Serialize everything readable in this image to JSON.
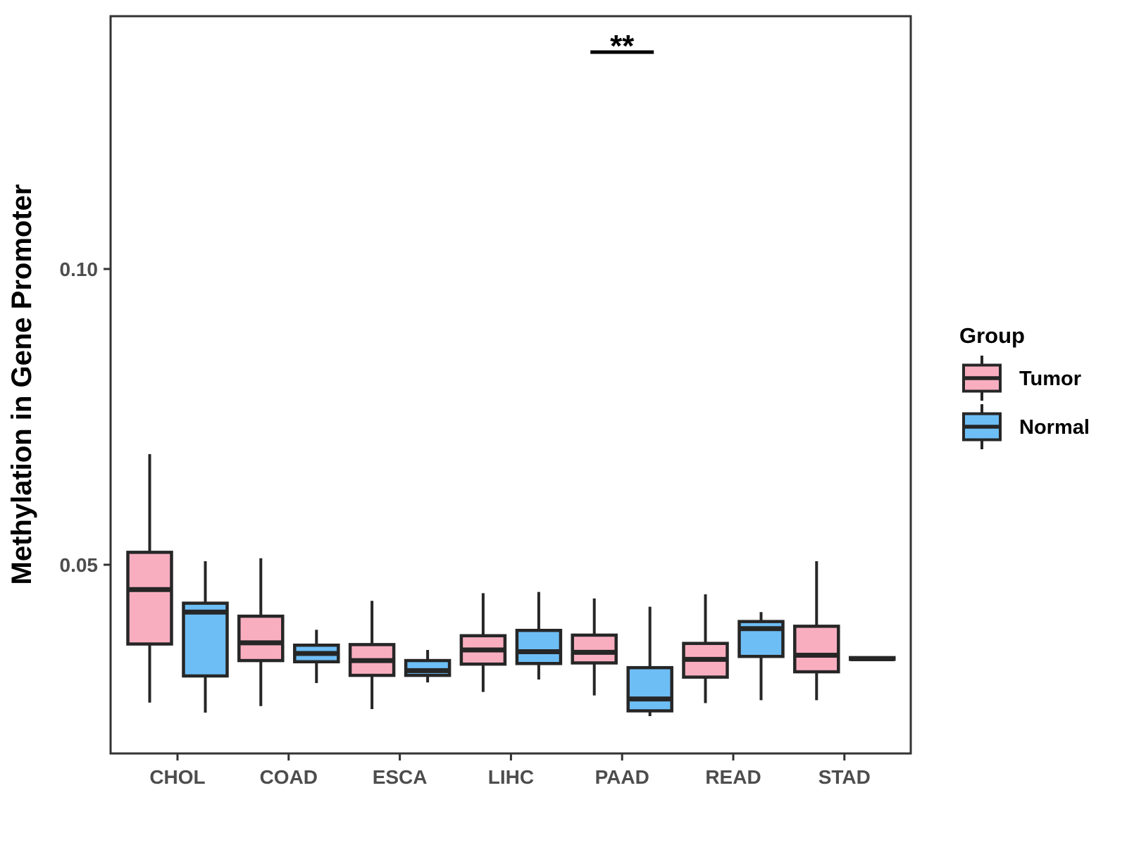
{
  "chart_data": {
    "type": "boxplot",
    "title": "",
    "xlabel": "",
    "ylabel": "Methylation in Gene Promoter",
    "categories": [
      "CHOL",
      "COAD",
      "ESCA",
      "LIHC",
      "PAAD",
      "READ",
      "STAD"
    ],
    "y_ticks": [
      {
        "value": 0.05,
        "label": "0.05"
      },
      {
        "value": 0.1,
        "label": "0.10"
      }
    ],
    "ylim": [
      0.018,
      0.143
    ],
    "grid": "off",
    "legend": {
      "position": "right",
      "title": "Group",
      "entries": [
        {
          "label": "Tumor",
          "color": "#f9aec0"
        },
        {
          "label": "Normal",
          "color": "#6ebef6"
        }
      ]
    },
    "significance": [
      {
        "category": "PAAD",
        "label": "**"
      }
    ],
    "series": [
      {
        "name": "Tumor",
        "color": "#f9aec0",
        "boxes": [
          {
            "category": "CHOL",
            "whisker_low": 0.0267,
            "q1": 0.0366,
            "median": 0.0458,
            "q3": 0.0521,
            "whisker_high": 0.0687
          },
          {
            "category": "COAD",
            "whisker_low": 0.0261,
            "q1": 0.0338,
            "median": 0.0368,
            "q3": 0.0413,
            "whisker_high": 0.0511
          },
          {
            "category": "ESCA",
            "whisker_low": 0.0256,
            "q1": 0.0313,
            "median": 0.0338,
            "q3": 0.0365,
            "whisker_high": 0.0439
          },
          {
            "category": "LIHC",
            "whisker_low": 0.0285,
            "q1": 0.0332,
            "median": 0.0356,
            "q3": 0.038,
            "whisker_high": 0.0452
          },
          {
            "category": "PAAD",
            "whisker_low": 0.0279,
            "q1": 0.0334,
            "median": 0.0352,
            "q3": 0.0381,
            "whisker_high": 0.0443
          },
          {
            "category": "READ",
            "whisker_low": 0.0266,
            "q1": 0.031,
            "median": 0.034,
            "q3": 0.0367,
            "whisker_high": 0.045
          },
          {
            "category": "STAD",
            "whisker_low": 0.0271,
            "q1": 0.0319,
            "median": 0.0347,
            "q3": 0.0396,
            "whisker_high": 0.0506
          }
        ]
      },
      {
        "name": "Normal",
        "color": "#6ebef6",
        "boxes": [
          {
            "category": "CHOL",
            "whisker_low": 0.025,
            "q1": 0.0312,
            "median": 0.042,
            "q3": 0.0435,
            "whisker_high": 0.0506
          },
          {
            "category": "COAD",
            "whisker_low": 0.03,
            "q1": 0.0336,
            "median": 0.035,
            "q3": 0.0364,
            "whisker_high": 0.039
          },
          {
            "category": "ESCA",
            "whisker_low": 0.0301,
            "q1": 0.0313,
            "median": 0.0321,
            "q3": 0.0338,
            "whisker_high": 0.0356
          },
          {
            "category": "LIHC",
            "whisker_low": 0.0306,
            "q1": 0.0333,
            "median": 0.0353,
            "q3": 0.0389,
            "whisker_high": 0.0454
          },
          {
            "category": "PAAD",
            "whisker_low": 0.0244,
            "q1": 0.0253,
            "median": 0.0273,
            "q3": 0.0326,
            "whisker_high": 0.0429
          },
          {
            "category": "READ",
            "whisker_low": 0.0271,
            "q1": 0.0345,
            "median": 0.0392,
            "q3": 0.0404,
            "whisker_high": 0.042
          },
          {
            "category": "STAD",
            "whisker_low": 0.0338,
            "q1": 0.034,
            "median": 0.0341,
            "q3": 0.0343,
            "whisker_high": 0.0345
          }
        ]
      }
    ],
    "style": {
      "box_border_color": "#262626",
      "median_color": "#262626",
      "axis_color": "#333333",
      "tick_text_color": "#4d4d4d",
      "title_text_color": "#000000",
      "significance_color": "#000000",
      "panel_background": "#ffffff"
    }
  }
}
